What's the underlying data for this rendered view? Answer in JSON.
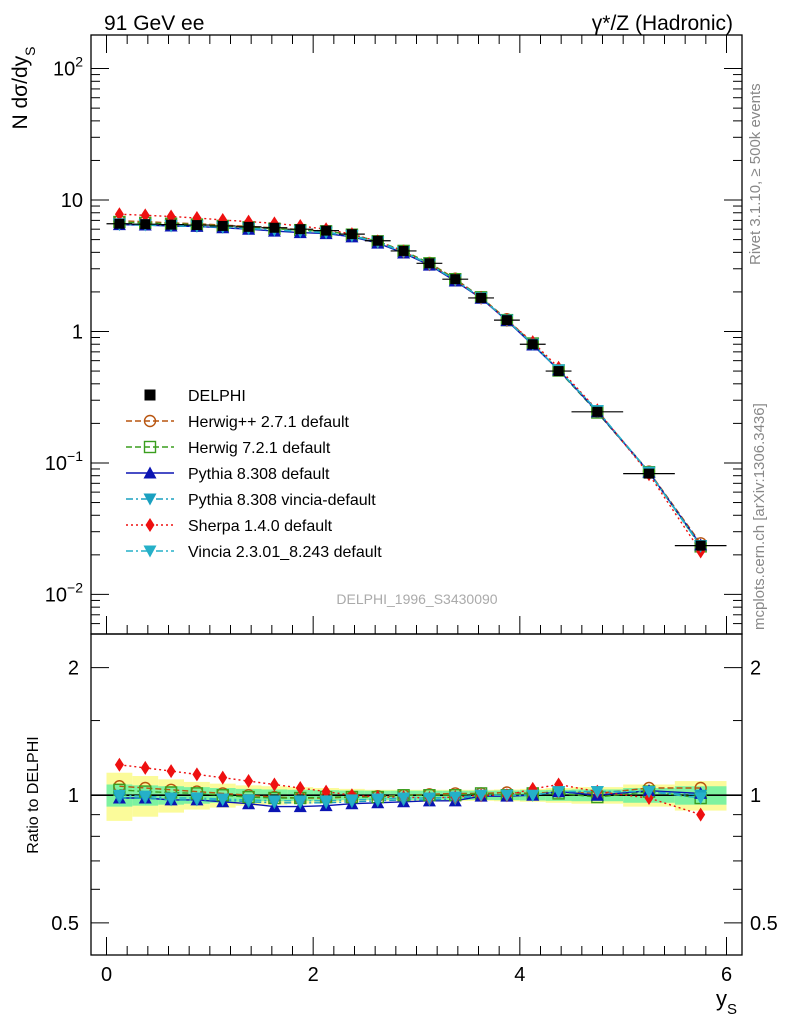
{
  "header": {
    "left": "91 GeV ee",
    "right": "γ*/Z (Hadronic)"
  },
  "side_labels": {
    "rivet": "Rivet 3.1.10, ≥ 500k events",
    "mcplots": "mcplots.cern.ch [arXiv:1306.3436]"
  },
  "watermark": "DELPHI_1996_S3430090",
  "colors": {
    "data": "#000000",
    "herwigpp": "#b8550f",
    "herwig7": "#3a9e1e",
    "pythia": "#0b14b3",
    "pythia_vincia": "#1aa0c0",
    "sherpa": "#ee1010",
    "vincia": "#25b0c8",
    "band_inner": "#7ef2a0",
    "band_outer": "#fbfb9a"
  },
  "chart_data": [
    {
      "type": "line",
      "panel": "main",
      "ylabel": "N dσ/dy",
      "ylabel_sub": "S",
      "yscale": "log",
      "ylim": [
        0.005,
        180
      ],
      "xlim": [
        -0.15,
        6.15
      ],
      "ytick_labels": [
        "10^-2",
        "10^-1",
        "1",
        "10",
        "10^2"
      ],
      "x": [
        0.125,
        0.375,
        0.625,
        0.875,
        1.125,
        1.375,
        1.625,
        1.875,
        2.125,
        2.375,
        2.625,
        2.875,
        3.125,
        3.375,
        3.625,
        3.875,
        4.125,
        4.375,
        4.75,
        5.25,
        5.75
      ],
      "data": {
        "name": "DELPHI",
        "values": [
          6.6,
          6.55,
          6.5,
          6.45,
          6.35,
          6.25,
          6.15,
          6.0,
          5.85,
          5.5,
          4.9,
          4.1,
          3.3,
          2.5,
          1.8,
          1.22,
          0.8,
          0.5,
          0.245,
          0.083,
          0.0235
        ],
        "xerr": [
          0.125,
          0.125,
          0.125,
          0.125,
          0.125,
          0.125,
          0.125,
          0.125,
          0.125,
          0.125,
          0.125,
          0.125,
          0.125,
          0.125,
          0.125,
          0.125,
          0.125,
          0.125,
          0.25,
          0.25,
          0.25
        ]
      },
      "series": [
        {
          "name": "Herwig++ 2.7.1 default",
          "key": "herwigpp",
          "marker": "open-circle",
          "dash": "dashed",
          "values": [
            6.95,
            6.85,
            6.7,
            6.6,
            6.45,
            6.3,
            6.15,
            5.95,
            5.8,
            5.45,
            4.85,
            4.1,
            3.32,
            2.52,
            1.82,
            1.24,
            0.81,
            0.51,
            0.247,
            0.086,
            0.0245
          ]
        },
        {
          "name": "Herwig 7.2.1 default",
          "key": "herwig7",
          "marker": "open-square",
          "dash": "dashed",
          "values": [
            6.8,
            6.7,
            6.6,
            6.5,
            6.35,
            6.2,
            6.05,
            5.9,
            5.78,
            5.45,
            4.85,
            4.1,
            3.3,
            2.5,
            1.82,
            1.22,
            0.81,
            0.505,
            0.242,
            0.085,
            0.0232
          ]
        },
        {
          "name": "Pythia 8.308 default",
          "key": "pythia",
          "marker": "triangle-up",
          "dash": "solid",
          "values": [
            6.5,
            6.45,
            6.35,
            6.3,
            6.15,
            6.0,
            5.8,
            5.65,
            5.55,
            5.25,
            4.7,
            3.95,
            3.2,
            2.42,
            1.79,
            1.21,
            0.79,
            0.51,
            0.245,
            0.085,
            0.0238
          ]
        },
        {
          "name": "Pythia 8.308 vincia-default",
          "key": "pythia_vincia",
          "marker": "triangle-down",
          "dash": "dashdot",
          "values": [
            6.5,
            6.45,
            6.35,
            6.3,
            6.2,
            6.05,
            5.9,
            5.75,
            5.62,
            5.32,
            4.75,
            4.0,
            3.22,
            2.45,
            1.8,
            1.22,
            0.8,
            0.51,
            0.25,
            0.085,
            0.0235
          ]
        },
        {
          "name": "Sherpa 1.4.0 default",
          "key": "sherpa",
          "marker": "diamond",
          "dash": "dotted",
          "values": [
            7.8,
            7.65,
            7.5,
            7.3,
            7.05,
            6.85,
            6.65,
            6.35,
            6.0,
            5.5,
            4.85,
            4.05,
            3.25,
            2.48,
            1.8,
            1.22,
            0.83,
            0.53,
            0.252,
            0.082,
            0.0212
          ]
        },
        {
          "name": "Vincia 2.3.01_8.243 default",
          "key": "vincia",
          "marker": "triangle-down",
          "dash": "dashdot",
          "values": [
            6.6,
            6.5,
            6.42,
            6.35,
            6.22,
            6.1,
            5.95,
            5.8,
            5.7,
            5.38,
            4.8,
            4.05,
            3.25,
            2.47,
            1.8,
            1.22,
            0.8,
            0.51,
            0.25,
            0.085,
            0.0232
          ]
        }
      ]
    },
    {
      "type": "line",
      "panel": "ratio",
      "ylabel": "Ratio to DELPHI",
      "xlabel": "y",
      "xlabel_sub": "S",
      "yscale": "log",
      "ylim": [
        0.42,
        2.4
      ],
      "xlim": [
        -0.15,
        6.15
      ],
      "ytick_labels": [
        "0.5",
        "1",
        "2"
      ],
      "xtick_labels": [
        "0",
        "2",
        "4",
        "6"
      ],
      "band_inner_halfwidth": [
        0.06,
        0.055,
        0.05,
        0.045,
        0.04,
        0.035,
        0.032,
        0.03,
        0.028,
        0.026,
        0.025,
        0.025,
        0.025,
        0.025,
        0.025,
        0.026,
        0.028,
        0.03,
        0.032,
        0.04,
        0.05
      ],
      "band_outer_halfwidth": [
        0.13,
        0.11,
        0.09,
        0.075,
        0.065,
        0.055,
        0.05,
        0.045,
        0.04,
        0.035,
        0.03,
        0.03,
        0.03,
        0.03,
        0.03,
        0.032,
        0.035,
        0.04,
        0.045,
        0.06,
        0.08
      ],
      "series": [
        {
          "name": "Herwig++ 2.7.1 default",
          "key": "herwigpp",
          "marker": "open-circle",
          "dash": "dashed",
          "values": [
            1.05,
            1.04,
            1.03,
            1.02,
            1.01,
            1.0,
            0.99,
            0.985,
            0.985,
            0.99,
            0.995,
            1.0,
            1.005,
            1.01,
            1.01,
            1.015,
            1.01,
            1.02,
            1.01,
            1.04,
            1.04
          ]
        },
        {
          "name": "Herwig 7.2.1 default",
          "key": "herwig7",
          "marker": "open-square",
          "dash": "dashed",
          "values": [
            1.03,
            1.02,
            1.015,
            1.01,
            1.0,
            0.99,
            0.985,
            0.985,
            0.99,
            0.99,
            0.99,
            1.0,
            1.0,
            1.0,
            1.01,
            1.0,
            1.01,
            1.01,
            0.99,
            1.02,
            0.985
          ]
        },
        {
          "name": "Pythia 8.308 default",
          "key": "pythia",
          "marker": "triangle-up",
          "dash": "solid",
          "values": [
            0.985,
            0.985,
            0.975,
            0.975,
            0.965,
            0.955,
            0.94,
            0.94,
            0.945,
            0.955,
            0.96,
            0.965,
            0.97,
            0.97,
            0.995,
            0.995,
            1.0,
            1.02,
            1.0,
            1.025,
            1.01
          ]
        },
        {
          "name": "Pythia 8.308 vincia-default",
          "key": "pythia_vincia",
          "marker": "triangle-down",
          "dash": "dashdot",
          "values": [
            0.985,
            0.985,
            0.975,
            0.975,
            0.975,
            0.965,
            0.96,
            0.96,
            0.96,
            0.965,
            0.97,
            0.975,
            0.975,
            0.98,
            1.0,
            1.0,
            1.0,
            1.02,
            1.02,
            1.02,
            1.0
          ]
        },
        {
          "name": "Sherpa 1.4.0 default",
          "key": "sherpa",
          "marker": "diamond",
          "dash": "dotted",
          "values": [
            1.18,
            1.16,
            1.14,
            1.12,
            1.1,
            1.08,
            1.06,
            1.04,
            1.02,
            1.0,
            0.99,
            0.99,
            0.985,
            0.99,
            1.0,
            1.0,
            1.035,
            1.06,
            1.02,
            0.985,
            0.9
          ]
        },
        {
          "name": "Vincia 2.3.01_8.243 default",
          "key": "vincia",
          "marker": "triangle-down",
          "dash": "dashdot",
          "values": [
            1.0,
            0.995,
            0.985,
            0.985,
            0.98,
            0.975,
            0.97,
            0.97,
            0.97,
            0.975,
            0.98,
            0.985,
            0.985,
            0.99,
            1.0,
            1.0,
            1.0,
            1.02,
            1.02,
            1.02,
            0.985
          ]
        }
      ]
    }
  ]
}
